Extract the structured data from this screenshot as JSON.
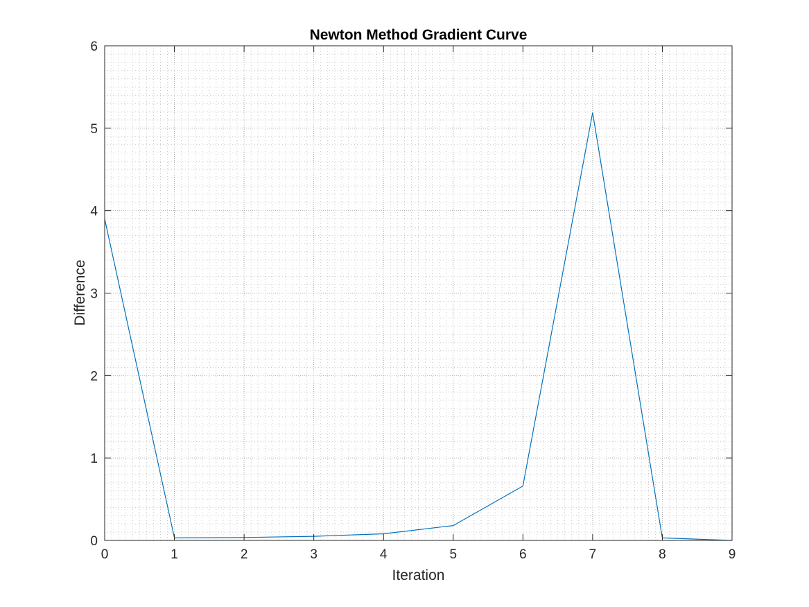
{
  "chart_data": {
    "type": "line",
    "title": "Newton Method Gradient Curve",
    "xlabel": "Iteration",
    "ylabel": "Difference",
    "xlim": [
      0,
      9
    ],
    "ylim": [
      0,
      6
    ],
    "x_ticks": [
      "0",
      "1",
      "2",
      "3",
      "4",
      "5",
      "6",
      "7",
      "8",
      "9"
    ],
    "y_ticks": [
      "0",
      "1",
      "2",
      "3",
      "4",
      "5",
      "6"
    ],
    "grid": "on, with minor grid",
    "minor_grid": {
      "x_per_major": 10,
      "y_per_major": 10
    },
    "series": [
      {
        "color": "#0072BD",
        "x": [
          0,
          1,
          2,
          3,
          4,
          5,
          6,
          7,
          8,
          9
        ],
        "values": [
          3.9,
          0.03,
          0.035,
          0.05,
          0.08,
          0.18,
          0.66,
          5.19,
          0.03,
          0.0
        ]
      }
    ]
  }
}
